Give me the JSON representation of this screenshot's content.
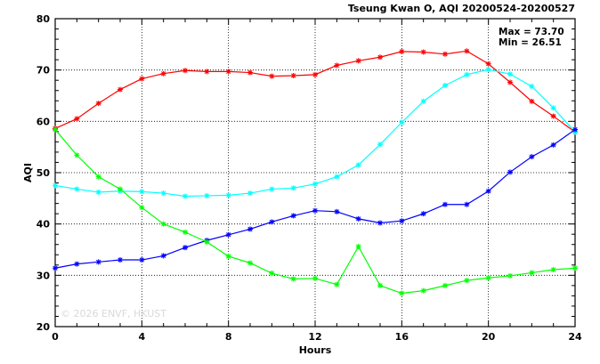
{
  "chart_data": {
    "type": "line",
    "title": "Tseung Kwan O, AQI 20200524-20200527",
    "xlabel": "Hours",
    "ylabel": "AQI",
    "xlim": [
      0,
      24
    ],
    "ylim": [
      20,
      80
    ],
    "x_ticks": [
      "0",
      "4",
      "8",
      "12",
      "16",
      "20",
      "24"
    ],
    "y_ticks": [
      "20",
      "30",
      "40",
      "50",
      "60",
      "70",
      "80"
    ],
    "grid": true,
    "legend": "none",
    "annotations": [
      "Max = 73.70",
      "Min = 26.51"
    ],
    "watermark": "© 2026 ENVF, HKUST",
    "x": [
      0,
      1,
      2,
      3,
      4,
      5,
      6,
      7,
      8,
      9,
      10,
      11,
      12,
      13,
      14,
      15,
      16,
      17,
      18,
      19,
      20,
      21,
      22,
      23,
      24
    ],
    "series": [
      {
        "color": "#ff0000",
        "values": [
          58.6,
          60.5,
          63.5,
          66.2,
          68.3,
          69.3,
          69.9,
          69.7,
          69.7,
          69.5,
          68.8,
          68.9,
          69.1,
          70.9,
          71.8,
          72.5,
          73.6,
          73.5,
          73.1,
          73.7,
          71.2,
          67.6,
          63.9,
          61.0,
          57.9
        ]
      },
      {
        "color": "#00ffff",
        "values": [
          47.5,
          46.8,
          46.2,
          46.4,
          46.3,
          46.0,
          45.4,
          45.5,
          45.6,
          46.0,
          46.8,
          47.0,
          47.8,
          49.2,
          51.5,
          55.5,
          59.8,
          63.9,
          67.0,
          69.1,
          70.1,
          69.2,
          66.8,
          62.6,
          57.9
        ]
      },
      {
        "color": "#0000ff",
        "values": [
          31.4,
          32.2,
          32.6,
          33.0,
          33.0,
          33.8,
          35.4,
          36.8,
          37.9,
          39.0,
          40.4,
          41.6,
          42.6,
          42.4,
          41.0,
          40.2,
          40.6,
          42.0,
          43.8,
          43.8,
          46.4,
          50.1,
          53.1,
          55.4,
          58.4
        ]
      },
      {
        "color": "#00ff00",
        "values": [
          58.4,
          53.4,
          49.2,
          46.8,
          43.2,
          40.0,
          38.4,
          36.5,
          33.7,
          32.4,
          30.4,
          29.3,
          29.4,
          28.2,
          35.6,
          28.0,
          26.5,
          27.0,
          28.0,
          29.0,
          29.5,
          29.9,
          30.5,
          31.1,
          31.4
        ]
      }
    ]
  }
}
